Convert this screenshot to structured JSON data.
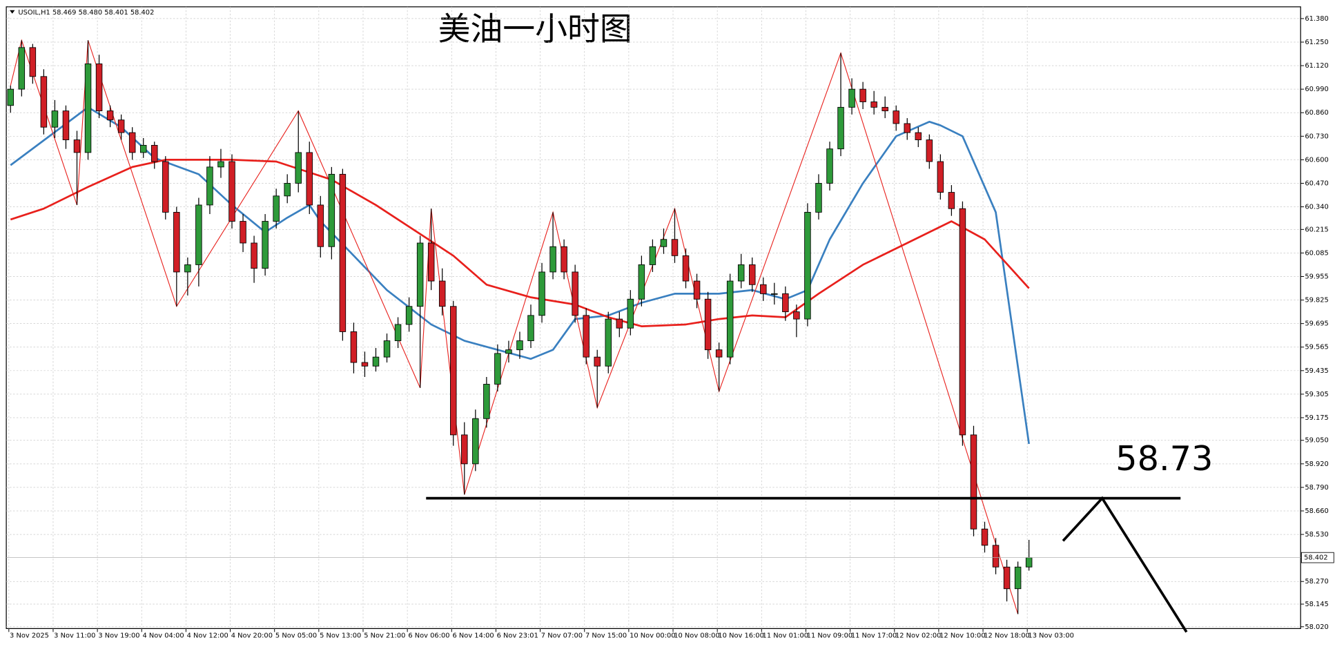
{
  "chart_data": {
    "type": "candlestick",
    "title": "美油一小时图",
    "header": "USOIL,H1 58.469 58.480 58.401 58.402",
    "categories": [
      "3 Nov 2025",
      null,
      null,
      null,
      "3 Nov 11:00",
      null,
      null,
      null,
      "3 Nov 19:00",
      null,
      null,
      null,
      "4 Nov 04:00",
      null,
      null,
      null,
      "4 Nov 12:00",
      null,
      null,
      null,
      "4 Nov 20:00",
      null,
      null,
      null,
      "5 Nov 05:00",
      null,
      null,
      null,
      "5 Nov 13:00",
      null,
      null,
      null,
      "5 Nov 21:00",
      null,
      null,
      null,
      "6 Nov 06:00",
      null,
      null,
      null,
      "6 Nov 14:00",
      null,
      null,
      null,
      "6 Nov 23:01",
      null,
      null,
      null,
      "7 Nov 07:00",
      null,
      null,
      null,
      "7 Nov 15:00",
      null,
      null,
      null,
      "10 Nov 00:00",
      null,
      null,
      null,
      "10 Nov 08:00",
      null,
      null,
      null,
      "10 Nov 16:00",
      null,
      null,
      null,
      "11 Nov 01:00",
      null,
      null,
      null,
      "11 Nov 09:00",
      null,
      null,
      null,
      "11 Nov 17:00",
      null,
      null,
      null,
      "12 Nov 02:00",
      null,
      null,
      null,
      "12 Nov 10:00",
      null,
      null,
      null,
      "12 Nov 18:00",
      null,
      null,
      null,
      "13 Nov 03:00"
    ],
    "open": [
      60.9,
      60.99,
      61.22,
      61.06,
      60.78,
      60.87,
      60.71,
      60.64,
      61.13,
      60.87,
      60.82,
      60.75,
      60.64,
      60.68,
      60.59,
      60.31,
      59.98,
      60.02,
      60.35,
      60.56,
      60.59,
      60.26,
      60.14,
      60.0,
      60.26,
      60.4,
      60.47,
      60.64,
      60.35,
      60.12,
      60.52,
      59.65,
      59.48,
      59.46,
      59.51,
      59.6,
      59.69,
      59.79,
      60.14,
      59.93,
      59.79,
      59.08,
      58.92,
      59.17,
      59.36,
      59.53,
      59.55,
      59.6,
      59.74,
      59.98,
      60.12,
      59.98,
      59.74,
      59.51,
      59.46,
      59.72,
      59.67,
      59.83,
      60.02,
      60.12,
      60.16,
      60.07,
      59.93,
      59.83,
      59.55,
      59.51,
      59.93,
      60.02,
      59.91,
      59.86,
      59.86,
      59.76,
      59.72,
      60.31,
      60.47,
      60.66,
      60.89,
      60.99,
      60.92,
      60.89,
      60.87,
      60.8,
      60.75,
      60.71,
      60.59,
      60.42,
      60.33,
      59.08,
      58.56,
      58.47,
      58.35,
      58.23,
      58.35
    ],
    "high": [
      61.01,
      61.26,
      61.24,
      61.1,
      60.93,
      60.9,
      60.76,
      61.26,
      61.18,
      60.9,
      60.85,
      60.78,
      60.72,
      60.7,
      60.62,
      60.34,
      60.06,
      60.39,
      60.62,
      60.66,
      60.63,
      60.3,
      60.18,
      60.3,
      60.44,
      60.52,
      60.87,
      60.7,
      60.4,
      60.56,
      60.55,
      59.7,
      59.54,
      59.56,
      59.64,
      59.73,
      59.84,
      60.18,
      60.33,
      60.0,
      59.82,
      59.15,
      59.22,
      59.4,
      59.58,
      59.6,
      59.65,
      59.8,
      60.03,
      60.31,
      60.16,
      60.02,
      59.78,
      59.55,
      59.76,
      59.76,
      59.88,
      60.07,
      60.16,
      60.22,
      60.33,
      60.11,
      59.97,
      59.87,
      59.59,
      59.97,
      60.08,
      60.06,
      59.95,
      59.92,
      59.9,
      59.8,
      60.36,
      60.52,
      60.7,
      61.19,
      61.05,
      61.03,
      60.98,
      60.95,
      60.9,
      60.83,
      60.78,
      60.74,
      60.63,
      60.46,
      60.37,
      59.13,
      58.6,
      58.51,
      58.39,
      58.38,
      58.5
    ],
    "low": [
      60.86,
      60.95,
      61.02,
      60.74,
      60.72,
      60.66,
      60.35,
      60.6,
      60.83,
      60.78,
      60.71,
      60.6,
      60.61,
      60.55,
      60.27,
      59.79,
      59.85,
      59.9,
      60.3,
      60.5,
      60.22,
      60.09,
      59.92,
      59.96,
      60.22,
      60.36,
      60.42,
      60.3,
      60.06,
      60.05,
      59.6,
      59.42,
      59.4,
      59.43,
      59.48,
      59.56,
      59.65,
      59.34,
      59.88,
      59.74,
      59.02,
      58.75,
      58.88,
      59.12,
      59.32,
      59.48,
      59.5,
      59.56,
      59.7,
      59.94,
      59.94,
      59.7,
      59.47,
      59.23,
      59.42,
      59.62,
      59.63,
      59.79,
      59.98,
      60.08,
      60.03,
      59.89,
      59.78,
      59.5,
      59.32,
      59.47,
      59.89,
      59.87,
      59.82,
      59.8,
      59.71,
      59.62,
      59.68,
      60.27,
      60.43,
      60.62,
      60.85,
      60.88,
      60.85,
      60.83,
      60.76,
      60.71,
      60.67,
      60.55,
      60.38,
      60.29,
      59.02,
      58.52,
      58.43,
      58.31,
      58.16,
      58.09,
      58.33
    ],
    "close": [
      60.99,
      61.22,
      61.06,
      60.78,
      60.87,
      60.71,
      60.64,
      61.13,
      60.87,
      60.82,
      60.75,
      60.64,
      60.68,
      60.59,
      60.31,
      59.98,
      60.02,
      60.35,
      60.56,
      60.59,
      60.26,
      60.14,
      60.0,
      60.26,
      60.4,
      60.47,
      60.64,
      60.35,
      60.12,
      60.52,
      59.65,
      59.48,
      59.46,
      59.51,
      59.6,
      59.69,
      59.79,
      60.14,
      59.93,
      59.79,
      59.08,
      58.92,
      59.17,
      59.36,
      59.53,
      59.55,
      59.6,
      59.74,
      59.98,
      60.12,
      59.98,
      59.74,
      59.51,
      59.46,
      59.72,
      59.67,
      59.83,
      60.02,
      60.12,
      60.16,
      60.07,
      59.93,
      59.83,
      59.55,
      59.51,
      59.93,
      60.02,
      59.91,
      59.86,
      59.86,
      59.76,
      59.72,
      60.31,
      60.47,
      60.66,
      60.89,
      60.99,
      60.92,
      60.89,
      60.87,
      60.8,
      60.75,
      60.71,
      60.59,
      60.42,
      60.33,
      59.08,
      58.56,
      58.47,
      58.35,
      58.23,
      58.35,
      58.402
    ],
    "up_color": "#2e9a3a",
    "down_color": "#d01f26",
    "lines": [
      {
        "color": "#3a80c0",
        "x": [
          0,
          7,
          10,
          13,
          17,
          20,
          23,
          25,
          27,
          28,
          31,
          34,
          38,
          41,
          44,
          47,
          49,
          51,
          54,
          57,
          60,
          64,
          67,
          70,
          72,
          74,
          77,
          80,
          83,
          84,
          86,
          89,
          92
        ],
        "values": [
          60.57,
          60.89,
          60.78,
          60.61,
          60.52,
          60.35,
          60.2,
          60.28,
          60.35,
          60.26,
          60.07,
          59.88,
          59.69,
          59.6,
          59.55,
          59.5,
          59.55,
          59.72,
          59.74,
          59.81,
          59.86,
          59.86,
          59.88,
          59.83,
          59.88,
          60.16,
          60.47,
          60.73,
          60.81,
          60.79,
          60.73,
          60.31,
          59.03
        ]
      },
      {
        "color": "#e8201c",
        "x": [
          0,
          3,
          7,
          11,
          14,
          20,
          24,
          29,
          33,
          37,
          40,
          43,
          47,
          51,
          54,
          57,
          61,
          64,
          67,
          70,
          73,
          77,
          81,
          85,
          88,
          92
        ],
        "values": [
          60.27,
          60.33,
          60.45,
          60.56,
          60.6,
          60.6,
          60.59,
          60.49,
          60.35,
          60.19,
          60.07,
          59.91,
          59.84,
          59.8,
          59.73,
          59.68,
          59.69,
          59.72,
          59.74,
          59.73,
          59.86,
          60.02,
          60.14,
          60.26,
          60.16,
          59.89
        ]
      }
    ],
    "zigzag": {
      "color": "#e8201c",
      "x": [
        0,
        1,
        6,
        7,
        15,
        26,
        37,
        38,
        41,
        49,
        53,
        60,
        64,
        75,
        91
      ],
      "values": [
        61.01,
        61.26,
        60.35,
        61.26,
        59.79,
        60.87,
        59.34,
        60.33,
        58.75,
        60.31,
        59.23,
        60.33,
        59.32,
        61.19,
        58.09
      ]
    },
    "level": 58.73,
    "last_price": 58.402,
    "ylim": [
      58.01,
      61.445
    ],
    "yticks": [
      {
        "value": 61.38,
        "label": "61.380"
      },
      {
        "value": 61.25,
        "label": "61.250"
      },
      {
        "value": 61.12,
        "label": "61.120"
      },
      {
        "value": 60.99,
        "label": "60.990"
      },
      {
        "value": 60.86,
        "label": "60.860"
      },
      {
        "value": 60.73,
        "label": "60.730"
      },
      {
        "value": 60.6,
        "label": "60.600"
      },
      {
        "value": 60.47,
        "label": "60.470"
      },
      {
        "value": 60.34,
        "label": "60.340"
      },
      60.215,
      60.085,
      59.955,
      59.825,
      59.695,
      59.565,
      59.435,
      59.305,
      59.175,
      {
        "value": 59.05,
        "label": "59.050"
      },
      {
        "value": 58.92,
        "label": "58.920"
      },
      {
        "value": 58.79,
        "label": "58.790"
      },
      {
        "value": 58.66,
        "label": "58.660"
      },
      {
        "value": 58.53,
        "label": "58.530"
      },
      {
        "value": 58.27,
        "label": "58.270"
      },
      58.145,
      {
        "value": 58.02,
        "label": "58.020"
      }
    ],
    "grid": true
  }
}
